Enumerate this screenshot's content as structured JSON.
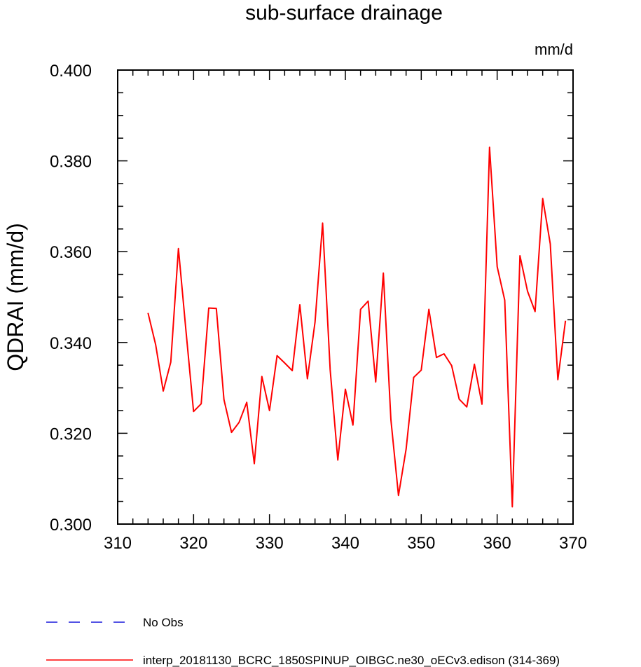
{
  "chart_data": {
    "type": "line",
    "title": "sub-surface drainage",
    "units": "mm/d",
    "ylabel": "QDRAI  (mm/d)",
    "xlabel": "",
    "xlim": [
      310,
      370
    ],
    "ylim": [
      0.3,
      0.4
    ],
    "x_ticks": [
      "310",
      "320",
      "330",
      "340",
      "350",
      "360",
      "370"
    ],
    "y_ticks": [
      "0.300",
      "0.320",
      "0.340",
      "0.360",
      "0.380",
      "0.400"
    ],
    "grid": false,
    "legend_position": "bottom-left",
    "series": [
      {
        "name": "No Obs",
        "color": "#1a1adb",
        "dash": "dashed",
        "x": [],
        "y": []
      },
      {
        "name": "interp_20181130_BCRC_1850SPINUP_OIBGC.ne30_oECv3.edison (314-369)",
        "color": "#ff0000",
        "dash": "solid",
        "x": [
          314,
          315,
          316,
          317,
          318,
          319,
          320,
          321,
          322,
          323,
          324,
          325,
          326,
          327,
          328,
          329,
          330,
          331,
          332,
          333,
          334,
          335,
          336,
          337,
          338,
          339,
          340,
          341,
          342,
          343,
          344,
          345,
          346,
          347,
          348,
          349,
          350,
          351,
          352,
          353,
          354,
          355,
          356,
          357,
          358,
          359,
          360,
          361,
          362,
          363,
          364,
          365,
          366,
          367,
          368,
          369
        ],
        "y": [
          0.3465,
          0.3395,
          0.3293,
          0.3357,
          0.3607,
          0.3425,
          0.3248,
          0.3265,
          0.3476,
          0.3475,
          0.3274,
          0.3202,
          0.3224,
          0.3268,
          0.3133,
          0.3325,
          0.325,
          0.3371,
          0.3355,
          0.3338,
          0.3483,
          0.332,
          0.3445,
          0.3663,
          0.334,
          0.3141,
          0.3297,
          0.3218,
          0.3473,
          0.3491,
          0.3313,
          0.3553,
          0.323,
          0.3063,
          0.3165,
          0.3323,
          0.3339,
          0.3473,
          0.3367,
          0.3375,
          0.3349,
          0.3275,
          0.3258,
          0.3352,
          0.3264,
          0.383,
          0.3567,
          0.3493,
          0.3038,
          0.3591,
          0.3513,
          0.3468,
          0.3717,
          0.3617,
          0.3318,
          0.3448
        ]
      }
    ]
  }
}
